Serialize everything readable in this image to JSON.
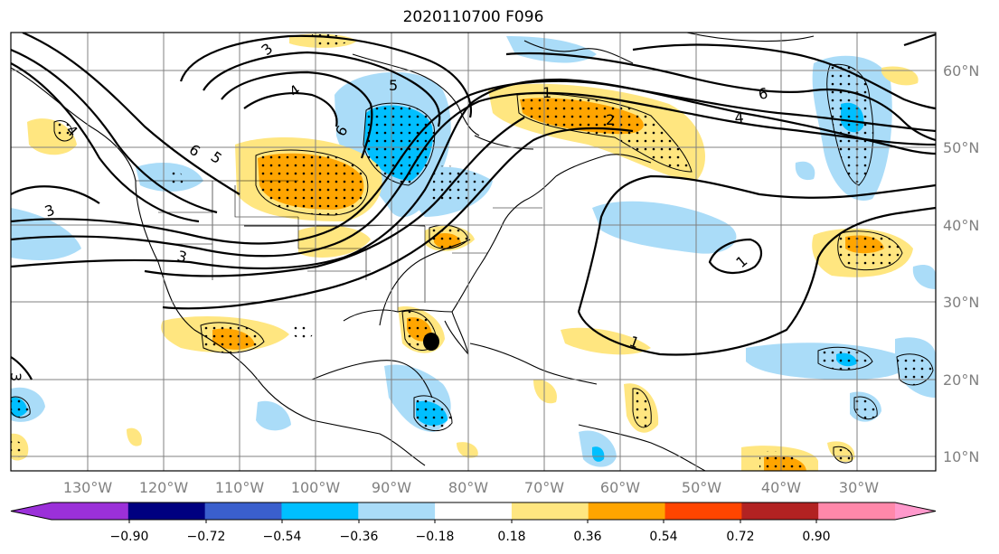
{
  "title": "2020110700 F096",
  "lon_labels": [
    "130°W",
    "120°W",
    "110°W",
    "100°W",
    "90°W",
    "80°W",
    "70°W",
    "60°W",
    "50°W",
    "40°W",
    "30°W"
  ],
  "lat_labels": [
    "60°N",
    "50°N",
    "40°N",
    "30°N",
    "20°N",
    "10°N"
  ],
  "contour_labels": [
    "3",
    "4",
    "5",
    "6",
    "5",
    "6",
    "4",
    "3",
    "3",
    "3",
    "1",
    "1",
    "6",
    "4",
    "2",
    "1"
  ],
  "colorbar": {
    "tick_labels": [
      "−0.90",
      "−0.72",
      "−0.54",
      "−0.36",
      "−0.18",
      "0.18",
      "0.36",
      "0.54",
      "0.72",
      "0.90"
    ],
    "colors": [
      "#9b30d9",
      "#000080",
      "#3a5fcd",
      "#00bfff",
      "#aadcf8",
      "#ffffff",
      "#ffe680",
      "#ffa500",
      "#ff4500",
      "#b22222",
      "#ff88aa",
      "#ff99cc"
    ]
  },
  "map_colors": {
    "ocean": "#ffffff",
    "neg_light": "#aadcf8",
    "neg_mid": "#00bfff",
    "pos_light": "#ffe680",
    "pos_mid": "#ffa500",
    "contour": "#000000",
    "grid": "#808080"
  }
}
